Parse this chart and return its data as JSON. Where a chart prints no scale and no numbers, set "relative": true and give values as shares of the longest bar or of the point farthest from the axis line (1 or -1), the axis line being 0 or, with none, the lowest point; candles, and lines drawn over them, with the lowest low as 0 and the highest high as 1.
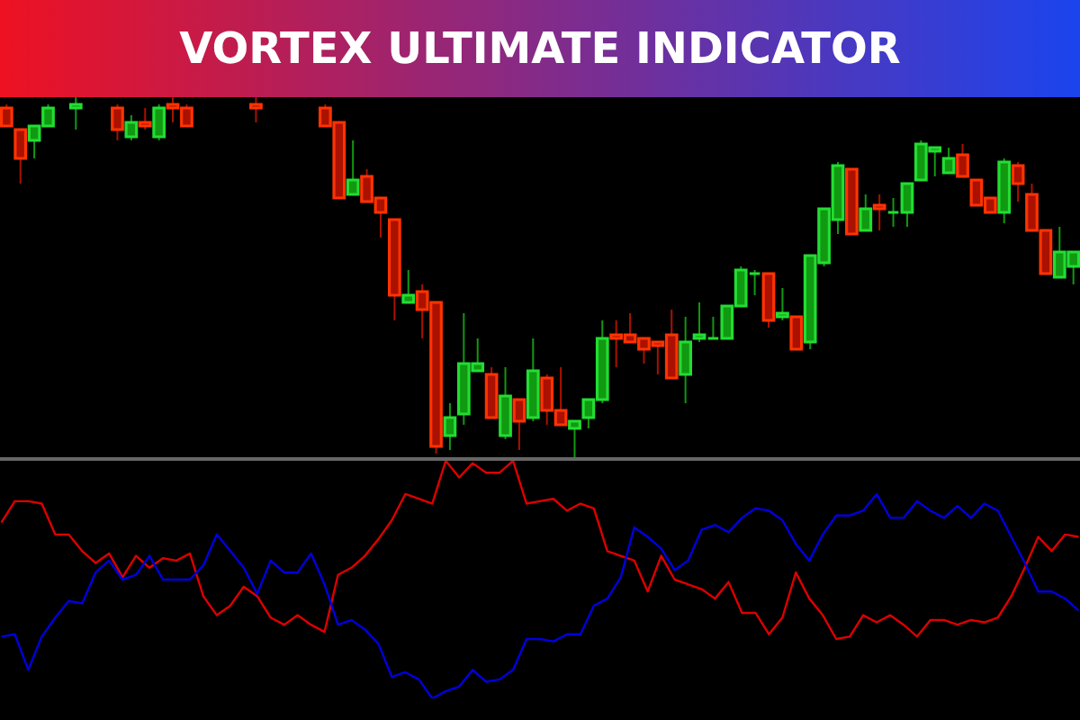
{
  "chart_data": [
    {
      "type": "candlestick",
      "title": "VORTEX ULTIMATE INDICATOR",
      "relative": true,
      "categories": [
        null,
        null,
        null,
        null,
        null,
        null,
        null,
        null,
        null,
        null,
        null,
        null,
        null,
        null,
        null,
        null,
        null,
        null,
        null,
        null,
        null,
        null,
        null,
        null,
        null,
        null,
        null,
        null,
        null,
        null,
        null,
        null,
        null,
        null,
        null,
        null,
        null,
        null,
        null,
        null,
        null,
        null,
        null,
        null,
        null,
        null,
        null,
        null,
        null,
        null,
        null,
        null,
        null,
        null,
        null,
        null,
        null,
        null,
        null,
        null,
        null,
        null,
        null,
        null,
        null,
        null,
        null,
        null,
        null,
        null,
        null,
        null,
        null,
        null,
        null,
        null,
        null,
        null
      ],
      "ohlc": [
        [
          0.97,
          0.98,
          0.92,
          0.92
        ],
        [
          0.91,
          0.91,
          0.76,
          0.83
        ],
        [
          0.88,
          0.92,
          0.83,
          0.92
        ],
        [
          0.92,
          0.98,
          0.92,
          0.97
        ],
        null,
        [
          0.97,
          1.0,
          0.91,
          0.98
        ],
        null,
        null,
        [
          0.97,
          0.98,
          0.88,
          0.91
        ],
        [
          0.89,
          0.95,
          0.88,
          0.93
        ],
        [
          0.93,
          0.97,
          0.91,
          0.92
        ],
        [
          0.89,
          0.98,
          0.88,
          0.97
        ],
        [
          0.98,
          1.0,
          0.93,
          0.97
        ],
        [
          0.97,
          0.98,
          0.92,
          0.92
        ],
        null,
        null,
        null,
        null,
        [
          0.98,
          1.0,
          0.93,
          0.97
        ],
        null,
        null,
        null,
        null,
        [
          0.97,
          0.98,
          0.92,
          0.92
        ],
        [
          0.93,
          0.93,
          0.72,
          0.72
        ],
        [
          0.73,
          0.88,
          0.73,
          0.77
        ],
        [
          0.78,
          0.8,
          0.71,
          0.71
        ],
        [
          0.72,
          0.72,
          0.61,
          0.68
        ],
        [
          0.66,
          0.66,
          0.38,
          0.45
        ],
        [
          0.43,
          0.52,
          0.43,
          0.45
        ],
        [
          0.46,
          0.48,
          0.33,
          0.41
        ],
        [
          0.43,
          0.43,
          0.01,
          0.03
        ],
        [
          0.06,
          0.15,
          0.02,
          0.11
        ],
        [
          0.12,
          0.4,
          0.09,
          0.26
        ],
        [
          0.24,
          0.33,
          0.24,
          0.26
        ],
        [
          0.23,
          0.25,
          0.11,
          0.11
        ],
        [
          0.06,
          0.25,
          0.05,
          0.17
        ],
        [
          0.16,
          0.16,
          0.02,
          0.1
        ],
        [
          0.11,
          0.33,
          0.1,
          0.24
        ],
        [
          0.22,
          0.23,
          0.09,
          0.13
        ],
        [
          0.13,
          0.25,
          0.09,
          0.09
        ],
        [
          0.08,
          0.1,
          0.0,
          0.1
        ],
        [
          0.11,
          0.16,
          0.08,
          0.16
        ],
        [
          0.16,
          0.38,
          0.15,
          0.33
        ],
        [
          0.34,
          0.38,
          0.25,
          0.33
        ],
        [
          0.34,
          0.4,
          0.32,
          0.32
        ],
        [
          0.33,
          0.33,
          0.26,
          0.3
        ],
        [
          0.32,
          0.32,
          0.23,
          0.31
        ],
        [
          0.34,
          0.41,
          0.22,
          0.22
        ],
        [
          0.23,
          0.39,
          0.15,
          0.32
        ],
        [
          0.33,
          0.43,
          0.32,
          0.34
        ],
        [
          0.33,
          0.39,
          0.33,
          0.33
        ],
        [
          0.33,
          0.42,
          0.33,
          0.42
        ],
        [
          0.42,
          0.53,
          0.42,
          0.52
        ],
        [
          0.51,
          0.52,
          0.45,
          0.51
        ],
        [
          0.51,
          0.51,
          0.36,
          0.38
        ],
        [
          0.39,
          0.47,
          0.38,
          0.4
        ],
        [
          0.39,
          0.39,
          0.3,
          0.3
        ],
        [
          0.32,
          0.56,
          0.3,
          0.56
        ],
        [
          0.54,
          0.69,
          0.53,
          0.69
        ],
        [
          0.66,
          0.82,
          0.62,
          0.81
        ],
        [
          0.8,
          0.8,
          0.62,
          0.62
        ],
        [
          0.63,
          0.73,
          0.63,
          0.69
        ],
        [
          0.7,
          0.73,
          0.63,
          0.69
        ],
        [
          0.68,
          0.72,
          0.64,
          0.68
        ],
        [
          0.68,
          0.76,
          0.64,
          0.76
        ],
        [
          0.77,
          0.88,
          0.77,
          0.87
        ],
        [
          0.85,
          0.86,
          0.78,
          0.86
        ],
        [
          0.79,
          0.86,
          0.79,
          0.83
        ],
        [
          0.84,
          0.87,
          0.78,
          0.78
        ],
        [
          0.77,
          0.77,
          0.7,
          0.7
        ],
        [
          0.72,
          0.72,
          0.68,
          0.68
        ],
        [
          0.68,
          0.83,
          0.65,
          0.82
        ],
        [
          0.81,
          0.82,
          0.71,
          0.76
        ],
        [
          0.73,
          0.76,
          0.63,
          0.63
        ],
        [
          0.63,
          0.63,
          0.51,
          0.51
        ],
        [
          0.5,
          0.64,
          0.5,
          0.57
        ],
        [
          0.53,
          0.57,
          0.48,
          0.57
        ]
      ]
    },
    {
      "type": "line",
      "relative": true,
      "categories": [
        null,
        null,
        null,
        null,
        null,
        null,
        null,
        null,
        null,
        null,
        null,
        null,
        null,
        null,
        null,
        null,
        null,
        null,
        null,
        null,
        null,
        null,
        null,
        null,
        null,
        null,
        null,
        null,
        null,
        null,
        null,
        null,
        null,
        null,
        null,
        null,
        null,
        null,
        null,
        null,
        null,
        null,
        null,
        null,
        null,
        null,
        null,
        null,
        null,
        null,
        null,
        null,
        null,
        null,
        null,
        null,
        null,
        null,
        null,
        null,
        null,
        null,
        null,
        null,
        null,
        null,
        null,
        null,
        null,
        null,
        null,
        null,
        null,
        null,
        null,
        null,
        null,
        null,
        null,
        null,
        null
      ],
      "series": [
        {
          "color": "#dd0000",
          "values": [
            0.74,
            0.83,
            0.83,
            0.82,
            0.69,
            0.69,
            0.62,
            0.57,
            0.61,
            0.51,
            0.6,
            0.55,
            0.59,
            0.58,
            0.61,
            0.43,
            0.35,
            0.39,
            0.47,
            0.43,
            0.34,
            0.31,
            0.35,
            0.31,
            0.28,
            0.52,
            0.55,
            0.6,
            0.67,
            0.75,
            0.86,
            0.84,
            0.82,
            1.0,
            0.93,
            0.99,
            0.95,
            0.95,
            1.0,
            0.82,
            0.83,
            0.84,
            0.79,
            0.82,
            0.8,
            0.62,
            0.6,
            0.58,
            0.45,
            0.6,
            0.5,
            0.48,
            0.46,
            0.42,
            0.49,
            0.36,
            0.36,
            0.27,
            0.34,
            0.53,
            0.42,
            0.35,
            0.25,
            0.26,
            0.35,
            0.32,
            0.35,
            0.31,
            0.26,
            0.33,
            0.33,
            0.31,
            0.33,
            0.32,
            0.34,
            0.43,
            0.55,
            0.68,
            0.62,
            0.69,
            0.68
          ]
        },
        {
          "color": "#0000dd",
          "values": [
            0.26,
            0.27,
            0.12,
            0.26,
            0.34,
            0.41,
            0.4,
            0.53,
            0.58,
            0.5,
            0.52,
            0.6,
            0.5,
            0.5,
            0.5,
            0.56,
            0.69,
            0.62,
            0.55,
            0.44,
            0.58,
            0.53,
            0.53,
            0.61,
            0.48,
            0.31,
            0.33,
            0.29,
            0.23,
            0.09,
            0.11,
            0.08,
            0.0,
            0.03,
            0.05,
            0.12,
            0.07,
            0.08,
            0.12,
            0.25,
            0.25,
            0.24,
            0.27,
            0.27,
            0.39,
            0.42,
            0.51,
            0.72,
            0.68,
            0.63,
            0.54,
            0.58,
            0.71,
            0.73,
            0.7,
            0.76,
            0.8,
            0.79,
            0.75,
            0.65,
            0.58,
            0.69,
            0.77,
            0.77,
            0.79,
            0.86,
            0.76,
            0.76,
            0.83,
            0.79,
            0.76,
            0.81,
            0.76,
            0.82,
            0.79,
            0.68,
            0.57,
            0.45,
            0.45,
            0.42,
            0.37
          ]
        }
      ]
    }
  ]
}
